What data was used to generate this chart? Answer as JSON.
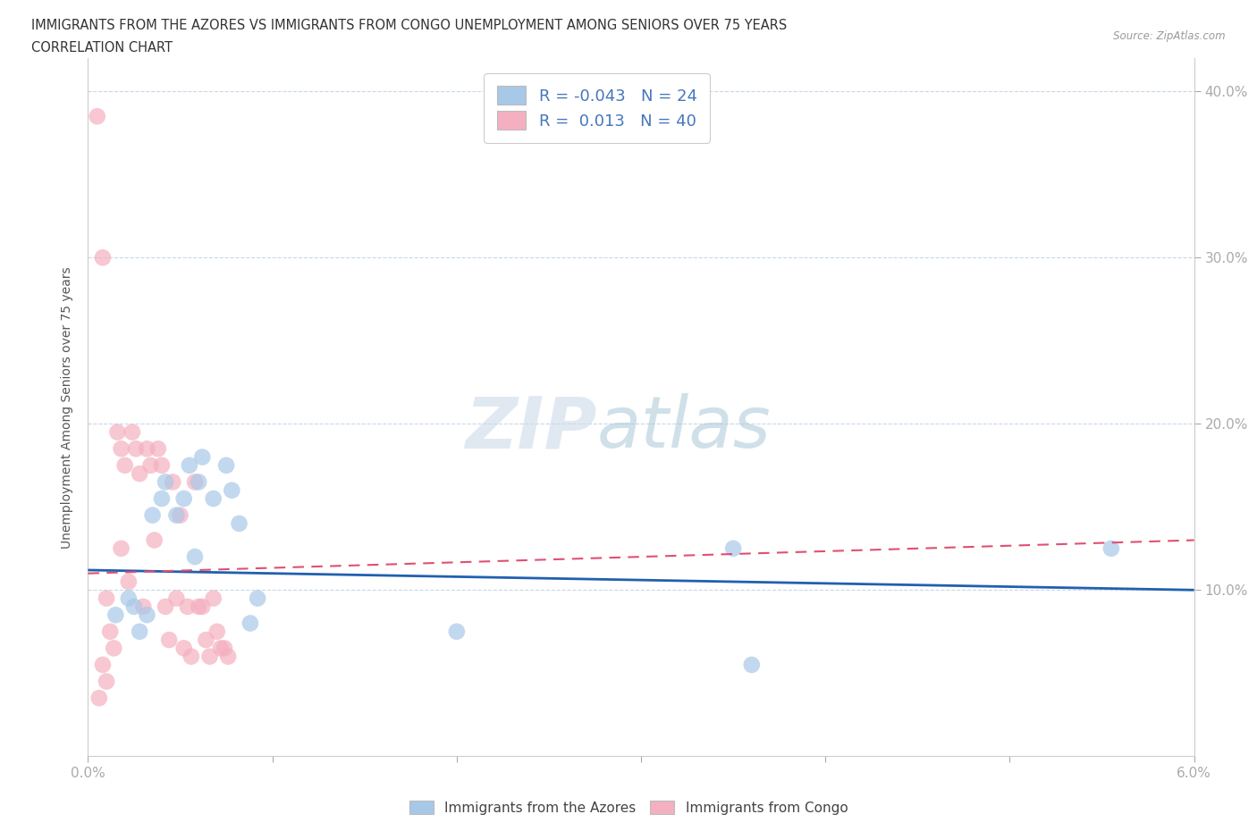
{
  "title_line1": "IMMIGRANTS FROM THE AZORES VS IMMIGRANTS FROM CONGO UNEMPLOYMENT AMONG SENIORS OVER 75 YEARS",
  "title_line2": "CORRELATION CHART",
  "source_text": "Source: ZipAtlas.com",
  "ylabel": "Unemployment Among Seniors over 75 years",
  "xlim": [
    0.0,
    0.06
  ],
  "ylim": [
    0.0,
    0.42
  ],
  "color_blue": "#a8c8e8",
  "color_pink": "#f4b0c0",
  "trend_blue": "#2060b0",
  "trend_pink": "#e05070",
  "R_blue": -0.043,
  "N_blue": 24,
  "R_pink": 0.013,
  "N_pink": 40,
  "legend_label_blue": "Immigrants from the Azores",
  "legend_label_pink": "Immigrants from Congo",
  "azores_x": [
    0.0015,
    0.0022,
    0.0028,
    0.0032,
    0.0035,
    0.004,
    0.0042,
    0.0048,
    0.0052,
    0.0055,
    0.006,
    0.0062,
    0.0068,
    0.0075,
    0.0078,
    0.0082,
    0.0088,
    0.0092,
    0.0025,
    0.0058,
    0.035,
    0.0555,
    0.036,
    0.02
  ],
  "azores_y": [
    0.085,
    0.095,
    0.075,
    0.085,
    0.145,
    0.155,
    0.165,
    0.145,
    0.155,
    0.175,
    0.165,
    0.18,
    0.155,
    0.175,
    0.16,
    0.14,
    0.08,
    0.095,
    0.09,
    0.12,
    0.125,
    0.125,
    0.055,
    0.075
  ],
  "congo_x": [
    0.0005,
    0.0008,
    0.001,
    0.0012,
    0.0014,
    0.0016,
    0.0018,
    0.002,
    0.0022,
    0.0024,
    0.0026,
    0.0028,
    0.003,
    0.0032,
    0.0034,
    0.0036,
    0.0038,
    0.004,
    0.0042,
    0.0044,
    0.0046,
    0.0048,
    0.005,
    0.0052,
    0.0054,
    0.0056,
    0.0058,
    0.006,
    0.0062,
    0.0064,
    0.0066,
    0.0068,
    0.007,
    0.0072,
    0.0074,
    0.0076,
    0.0018,
    0.0008,
    0.001,
    0.0006
  ],
  "congo_y": [
    0.385,
    0.3,
    0.095,
    0.075,
    0.065,
    0.195,
    0.185,
    0.175,
    0.105,
    0.195,
    0.185,
    0.17,
    0.09,
    0.185,
    0.175,
    0.13,
    0.185,
    0.175,
    0.09,
    0.07,
    0.165,
    0.095,
    0.145,
    0.065,
    0.09,
    0.06,
    0.165,
    0.09,
    0.09,
    0.07,
    0.06,
    0.095,
    0.075,
    0.065,
    0.065,
    0.06,
    0.125,
    0.055,
    0.045,
    0.035
  ],
  "trend_blue_y0": 0.112,
  "trend_blue_y1": 0.1,
  "trend_pink_y0": 0.11,
  "trend_pink_y1": 0.13
}
